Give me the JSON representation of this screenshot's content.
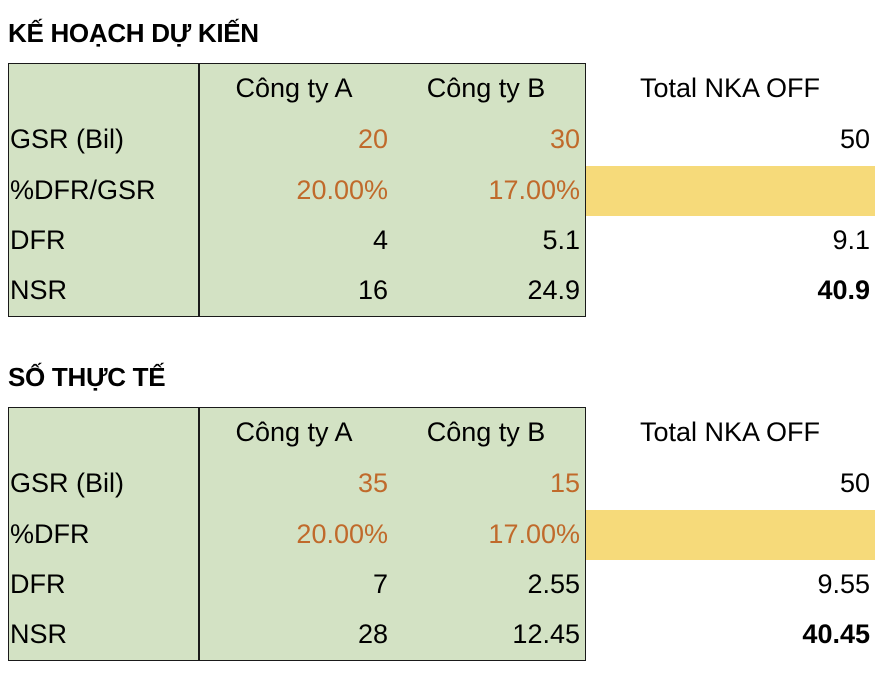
{
  "plan": {
    "title": "KẾ HOẠCH DỰ KIẾN",
    "header": {
      "col_a": "Công ty A",
      "col_b": "Công ty B",
      "col_total": "Total NKA OFF"
    },
    "rows": [
      {
        "label": "GSR (Bil)",
        "a": "20",
        "b": "30",
        "total": "50"
      },
      {
        "label": "%DFR/GSR",
        "a": "20.00%",
        "b": "17.00%",
        "total": ""
      },
      {
        "label": "DFR",
        "a": "4",
        "b": "5.1",
        "total": "9.1"
      },
      {
        "label": "NSR",
        "a": "16",
        "b": "24.9",
        "total": "40.9"
      }
    ]
  },
  "actual": {
    "title": "SỐ THỰC TẾ",
    "header": {
      "col_a": "Công ty A",
      "col_b": "Công ty B",
      "col_total": "Total NKA OFF"
    },
    "rows": [
      {
        "label": "GSR (Bil)",
        "a": "35",
        "b": "15",
        "total": "50"
      },
      {
        "label": "%DFR",
        "a": "20.00%",
        "b": "17.00%",
        "total": ""
      },
      {
        "label": "DFR",
        "a": "7",
        "b": "2.55",
        "total": "9.55"
      },
      {
        "label": "NSR",
        "a": "28",
        "b": "12.45",
        "total": "40.45"
      }
    ]
  },
  "colors": {
    "table_fill": "#d3e2c4",
    "input_text": "#c06a2b",
    "highlight_fill": "#f6da7a"
  }
}
